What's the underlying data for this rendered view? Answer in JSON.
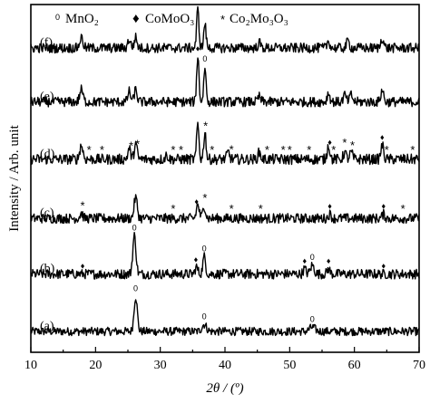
{
  "legend": {
    "items": [
      {
        "symbol": "0",
        "label": "MnO₂"
      },
      {
        "symbol": "♦",
        "label": "CoMoO₃"
      },
      {
        "symbol": "*",
        "label": "Co₂Mo₃O₃"
      }
    ]
  },
  "chart_data": {
    "type": "line",
    "xlabel": "2θ / (º)",
    "ylabel": "Intensity / Arb. unit",
    "xlim": [
      10,
      70
    ],
    "x_ticks": [
      "10",
      "20",
      "30",
      "40",
      "50",
      "60",
      "70"
    ],
    "series": [
      {
        "name": "(a)",
        "baseline": 0.06,
        "noise": 0.012,
        "peaks": [
          [
            26.2,
            0.1,
            0.35
          ],
          [
            36.8,
            0.02,
            0.5
          ],
          [
            53.5,
            0.012,
            0.6
          ]
        ],
        "markers": [
          {
            "type": "MnO2",
            "x": 26.2
          },
          {
            "type": "MnO2",
            "x": 36.8
          },
          {
            "type": "MnO2",
            "x": 53.5
          }
        ]
      },
      {
        "name": "(b)",
        "baseline": 0.225,
        "noise": 0.014,
        "peaks": [
          [
            26.0,
            0.11,
            0.35
          ],
          [
            35.6,
            0.02,
            0.3
          ],
          [
            36.8,
            0.05,
            0.3
          ],
          [
            52.3,
            0.015,
            0.3
          ],
          [
            53.5,
            0.025,
            0.4
          ],
          [
            56.0,
            0.015,
            0.3
          ]
        ],
        "markers": [
          {
            "type": "CoMoO3",
            "x": 18.0
          },
          {
            "type": "MnO2",
            "x": 26.0
          },
          {
            "type": "CoMoO3",
            "x": 35.5
          },
          {
            "type": "MnO2",
            "x": 36.8
          },
          {
            "type": "CoMoO3",
            "x": 52.3
          },
          {
            "type": "MnO2",
            "x": 53.5
          },
          {
            "type": "CoMoO3",
            "x": 56.0
          },
          {
            "type": "CoMoO3",
            "x": 64.5
          }
        ]
      },
      {
        "name": "(c)",
        "baseline": 0.385,
        "noise": 0.014,
        "peaks": [
          [
            17.8,
            0.015,
            0.3
          ],
          [
            26.2,
            0.06,
            0.35
          ],
          [
            35.8,
            0.04,
            0.3
          ],
          [
            36.8,
            0.035,
            0.3
          ],
          [
            56.2,
            0.012,
            0.3
          ],
          [
            64.5,
            0.012,
            0.3
          ]
        ],
        "markers": [
          {
            "type": "Co2Mo3O3",
            "x": 18.0
          },
          {
            "type": "Co2Mo3O3",
            "x": 32.0
          },
          {
            "type": "CoMoO3",
            "x": 35.6
          },
          {
            "type": "Co2Mo3O3",
            "x": 36.9
          },
          {
            "type": "Co2Mo3O3",
            "x": 41.0
          },
          {
            "type": "Co2Mo3O3",
            "x": 45.5
          },
          {
            "type": "CoMoO3",
            "x": 56.2
          },
          {
            "type": "CoMoO3",
            "x": 64.5
          },
          {
            "type": "Co2Mo3O3",
            "x": 67.5
          }
        ]
      },
      {
        "name": "(d)",
        "baseline": 0.555,
        "noise": 0.015,
        "peaks": [
          [
            17.8,
            0.04,
            0.35
          ],
          [
            25.2,
            0.03,
            0.3
          ],
          [
            26.2,
            0.045,
            0.3
          ],
          [
            31.0,
            0.012,
            0.3
          ],
          [
            35.8,
            0.1,
            0.25
          ],
          [
            36.9,
            0.08,
            0.25
          ],
          [
            40.5,
            0.02,
            0.3
          ],
          [
            45.3,
            0.02,
            0.3
          ],
          [
            56.0,
            0.04,
            0.3
          ],
          [
            58.5,
            0.02,
            0.3
          ],
          [
            59.5,
            0.02,
            0.3
          ],
          [
            64.3,
            0.04,
            0.3
          ]
        ],
        "markers": [
          {
            "type": "Co2Mo3O3",
            "x": 19.0
          },
          {
            "type": "Co2Mo3O3",
            "x": 21.0
          },
          {
            "type": "Co2Mo3O3",
            "x": 25.5
          },
          {
            "type": "Co2Mo3O3",
            "x": 26.5
          },
          {
            "type": "Co2Mo3O3",
            "x": 32.0
          },
          {
            "type": "Co2Mo3O3",
            "x": 33.2
          },
          {
            "type": "Co2Mo3O3",
            "x": 37.0
          },
          {
            "type": "Co2Mo3O3",
            "x": 38.0
          },
          {
            "type": "Co2Mo3O3",
            "x": 41.0
          },
          {
            "type": "Co2Mo3O3",
            "x": 46.5
          },
          {
            "type": "Co2Mo3O3",
            "x": 49.0
          },
          {
            "type": "Co2Mo3O3",
            "x": 50.0
          },
          {
            "type": "Co2Mo3O3",
            "x": 53.0
          },
          {
            "type": "CoMoO3",
            "x": 56.2
          },
          {
            "type": "Co2Mo3O3",
            "x": 56.8
          },
          {
            "type": "Co2Mo3O3",
            "x": 58.5
          },
          {
            "type": "Co2Mo3O3",
            "x": 59.7
          },
          {
            "type": "CoMoO3",
            "x": 64.3
          },
          {
            "type": "Co2Mo3O3",
            "x": 65.0
          },
          {
            "type": "Co2Mo3O3",
            "x": 69.0
          }
        ]
      },
      {
        "name": "(e)",
        "baseline": 0.72,
        "noise": 0.014,
        "peaks": [
          [
            17.8,
            0.035,
            0.35
          ],
          [
            25.2,
            0.03,
            0.3
          ],
          [
            26.2,
            0.035,
            0.3
          ],
          [
            35.8,
            0.13,
            0.25
          ],
          [
            36.9,
            0.1,
            0.25
          ],
          [
            45.3,
            0.015,
            0.3
          ],
          [
            56.0,
            0.025,
            0.3
          ],
          [
            58.5,
            0.02,
            0.3
          ],
          [
            59.5,
            0.02,
            0.3
          ],
          [
            64.3,
            0.035,
            0.3
          ]
        ],
        "markers": [
          {
            "type": "CoMoO3",
            "x": 35.8
          },
          {
            "type": "MnO2",
            "x": 36.9
          }
        ]
      },
      {
        "name": "(f)",
        "baseline": 0.875,
        "noise": 0.014,
        "peaks": [
          [
            17.8,
            0.03,
            0.35
          ],
          [
            25.2,
            0.025,
            0.3
          ],
          [
            26.2,
            0.03,
            0.3
          ],
          [
            35.8,
            0.11,
            0.25
          ],
          [
            36.9,
            0.07,
            0.25
          ],
          [
            45.3,
            0.015,
            0.3
          ],
          [
            56.0,
            0.02,
            0.3
          ],
          [
            59.0,
            0.02,
            0.3
          ],
          [
            64.3,
            0.03,
            0.3
          ]
        ],
        "markers": []
      }
    ],
    "grid": false,
    "legend_position": "top"
  }
}
